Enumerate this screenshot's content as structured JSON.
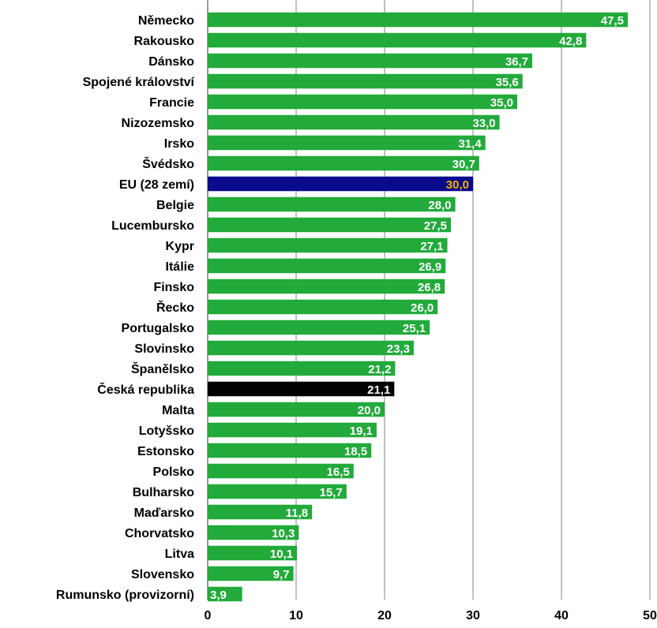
{
  "chart_data": {
    "type": "bar",
    "orientation": "horizontal",
    "categories": [
      "Německo",
      "Rakousko",
      "Dánsko",
      "Spojené království",
      "Francie",
      "Nizozemsko",
      "Irsko",
      "Švédsko",
      "EU (28 zemí)",
      "Belgie",
      "Lucembursko",
      "Kypr",
      "Itálie",
      "Finsko",
      "Řecko",
      "Portugalsko",
      "Slovinsko",
      "Španělsko",
      "Česká republika",
      "Malta",
      "Lotyšsko",
      "Estonsko",
      "Polsko",
      "Bulharsko",
      "Maďarsko",
      "Chorvatsko",
      "Litva",
      "Slovensko",
      "Rumunsko (provizorní)"
    ],
    "values": [
      47.5,
      42.8,
      36.7,
      35.6,
      35.0,
      33.0,
      31.4,
      30.7,
      30.0,
      28.0,
      27.5,
      27.1,
      26.9,
      26.8,
      26.0,
      25.1,
      23.3,
      21.2,
      21.1,
      20.0,
      19.1,
      18.5,
      16.5,
      15.7,
      11.8,
      10.3,
      10.1,
      9.7,
      3.9
    ],
    "value_labels": [
      "47,5",
      "42,8",
      "36,7",
      "35,6",
      "35,0",
      "33,0",
      "31,4",
      "30,7",
      "30,0",
      "28,0",
      "27,5",
      "27,1",
      "26,9",
      "26,8",
      "26,0",
      "25,1",
      "23,3",
      "21,2",
      "21,1",
      "20,0",
      "19,1",
      "18,5",
      "16,5",
      "15,7",
      "11,8",
      "10,3",
      "10,1",
      "9,7",
      "3,9"
    ],
    "bar_colors": {
      "default": "#22aa3a",
      "EU (28 zemí)": "#0a0a8c",
      "Česká republika": "#000000"
    },
    "label_colors": {
      "default": "#ffffff",
      "EU (28 zemí)": "#f2b400"
    },
    "xlim": [
      0,
      50
    ],
    "xticks": [
      0,
      10,
      20,
      30,
      40,
      50
    ],
    "grid": true,
    "title": ""
  }
}
